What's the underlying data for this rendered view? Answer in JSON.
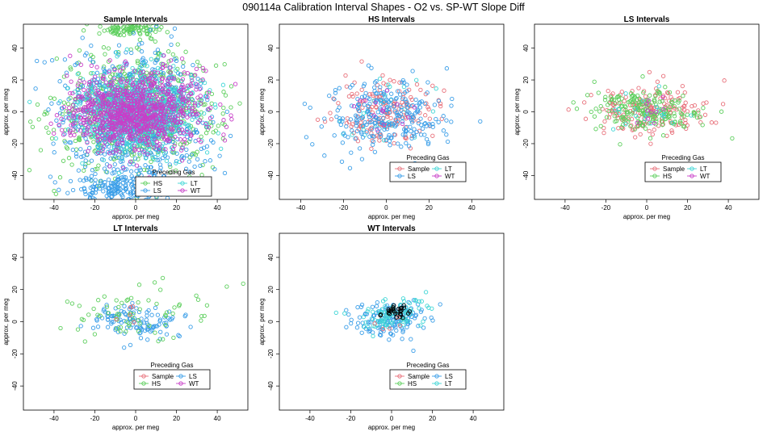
{
  "figure": {
    "title": "090114a   Calibration Interval Shapes - O2 vs. SP-WT Slope Diff"
  },
  "colors": {
    "Sample": "#e8707a",
    "HS": "#5dcf5d",
    "LS": "#3a9ee8",
    "LT": "#3fd6d6",
    "WT": "#c83fc8",
    "black": "#000000"
  },
  "legend": {
    "title": "Preceding Gas"
  },
  "chart_data": [
    {
      "type": "scatter",
      "title": "Sample Intervals",
      "xlabel": "approx. per meg",
      "ylabel": "approx. per meg",
      "xlim": [
        -55,
        55
      ],
      "ylim": [
        -55,
        55
      ],
      "xticks": [
        -40,
        -20,
        0,
        20,
        40
      ],
      "yticks": [
        -40,
        -20,
        0,
        20,
        40
      ],
      "legend": {
        "entries": [
          "HS",
          "LT",
          "LS",
          "WT"
        ],
        "columns": 2,
        "placement": "bottom-right"
      },
      "series": [
        {
          "name": "HS",
          "color": "#5dcf5d",
          "n": 700,
          "center": [
            0,
            0
          ],
          "sd": [
            20,
            18
          ],
          "extra": {
            "n": 90,
            "center": [
              0,
              52
            ],
            "sd": [
              8,
              2
            ]
          }
        },
        {
          "name": "LS",
          "color": "#3a9ee8",
          "n": 700,
          "center": [
            0,
            -5
          ],
          "sd": [
            18,
            22
          ],
          "extra": {
            "n": 160,
            "center": [
              -8,
              -48
            ],
            "sd": [
              12,
              4
            ]
          }
        },
        {
          "name": "LT",
          "color": "#3fd6d6",
          "n": 800,
          "center": [
            0,
            0
          ],
          "sd": [
            14,
            12
          ]
        },
        {
          "name": "WT",
          "color": "#c83fc8",
          "n": 900,
          "center": [
            0,
            0
          ],
          "sd": [
            16,
            12
          ]
        }
      ]
    },
    {
      "type": "scatter",
      "title": "HS Intervals",
      "xlabel": "approx. per meg",
      "ylabel": "approx. per meg",
      "xlim": [
        -50,
        55
      ],
      "ylim": [
        -55,
        55
      ],
      "xticks": [
        -40,
        -20,
        0,
        20,
        40
      ],
      "yticks": [
        -40,
        -20,
        0,
        20,
        40
      ],
      "legend": {
        "entries": [
          "Sample",
          "LT",
          "LS",
          "WT"
        ],
        "columns": 2,
        "placement": "bottom-center"
      },
      "series": [
        {
          "name": "Sample",
          "color": "#e8707a",
          "n": 170,
          "center": [
            0,
            0
          ],
          "sd": [
            11,
            10
          ]
        },
        {
          "name": "LT",
          "color": "#3fd6d6",
          "n": 30,
          "center": [
            0,
            0
          ],
          "sd": [
            12,
            10
          ]
        },
        {
          "name": "LS",
          "color": "#3a9ee8",
          "n": 260,
          "center": [
            0,
            -2
          ],
          "sd": [
            14,
            12
          ]
        },
        {
          "name": "WT",
          "color": "#c83fc8",
          "n": 15,
          "center": [
            0,
            0
          ],
          "sd": [
            8,
            8
          ]
        }
      ]
    },
    {
      "type": "scatter",
      "title": "LS Intervals",
      "xlabel": "approx. per meg",
      "ylabel": "approx. per meg",
      "xlim": [
        -55,
        55
      ],
      "ylim": [
        -55,
        55
      ],
      "xticks": [
        -40,
        -20,
        0,
        20,
        40
      ],
      "yticks": [
        -40,
        -20,
        0,
        20,
        40
      ],
      "legend": {
        "entries": [
          "Sample",
          "LT",
          "HS",
          "WT"
        ],
        "columns": 2,
        "placement": "bottom-center"
      },
      "series": [
        {
          "name": "Sample",
          "color": "#e8707a",
          "n": 180,
          "center": [
            2,
            1
          ],
          "sd": [
            15,
            8
          ]
        },
        {
          "name": "HS",
          "color": "#5dcf5d",
          "n": 200,
          "center": [
            0,
            0
          ],
          "sd": [
            13,
            7
          ]
        },
        {
          "name": "LT",
          "color": "#3fd6d6",
          "n": 20,
          "center": [
            0,
            0
          ],
          "sd": [
            10,
            6
          ]
        },
        {
          "name": "WT",
          "color": "#c83fc8",
          "n": 10,
          "center": [
            0,
            0
          ],
          "sd": [
            6,
            5
          ]
        }
      ]
    },
    {
      "type": "scatter",
      "title": "LT Intervals",
      "xlabel": "approx. per meg",
      "ylabel": "approx. per meg",
      "xlim": [
        -55,
        55
      ],
      "ylim": [
        -55,
        55
      ],
      "xticks": [
        -40,
        -20,
        0,
        20,
        40
      ],
      "yticks": [
        -40,
        -20,
        0,
        20,
        40
      ],
      "legend": {
        "entries": [
          "Sample",
          "LS",
          "HS",
          "WT"
        ],
        "columns": 2,
        "placement": "bottom-center"
      },
      "series": [
        {
          "name": "LS",
          "color": "#3a9ee8",
          "n": 120,
          "center": [
            0,
            0
          ],
          "sd": [
            10,
            6
          ]
        },
        {
          "name": "HS",
          "color": "#5dcf5d",
          "n": 70,
          "center": [
            0,
            5
          ],
          "sd": [
            18,
            10
          ]
        },
        {
          "name": "Sample",
          "color": "#e8707a",
          "n": 5,
          "center": [
            0,
            0
          ],
          "sd": [
            6,
            5
          ]
        }
      ]
    },
    {
      "type": "scatter",
      "title": "WT Intervals",
      "xlabel": "approx. per meg",
      "ylabel": "approx. per meg",
      "xlim": [
        -55,
        55
      ],
      "ylim": [
        -55,
        55
      ],
      "xticks": [
        -40,
        -20,
        0,
        20,
        40
      ],
      "yticks": [
        -40,
        -20,
        0,
        20,
        40
      ],
      "legend": {
        "entries": [
          "Sample",
          "LS",
          "HS",
          "LT"
        ],
        "columns": 2,
        "placement": "bottom-center"
      },
      "series": [
        {
          "name": "LS",
          "color": "#3a9ee8",
          "n": 150,
          "center": [
            0,
            2
          ],
          "sd": [
            9,
            6
          ]
        },
        {
          "name": "LT",
          "color": "#3fd6d6",
          "n": 90,
          "center": [
            0,
            4
          ],
          "sd": [
            8,
            5
          ]
        },
        {
          "name": "black",
          "color": "#000000",
          "n": 30,
          "center": [
            2,
            6
          ],
          "sd": [
            3,
            2
          ]
        },
        {
          "name": "Sample",
          "color": "#e8707a",
          "n": 5,
          "center": [
            0,
            0
          ],
          "sd": [
            5,
            5
          ]
        }
      ]
    }
  ]
}
